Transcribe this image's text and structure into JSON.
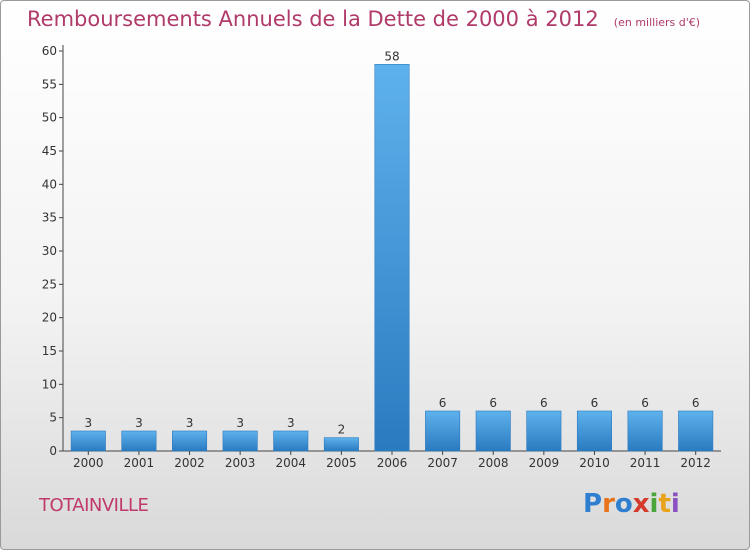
{
  "chart_data": {
    "type": "bar",
    "title": "Remboursements Annuels de la Dette de 2000 à 2012",
    "subtitle": "(en milliers d'€)",
    "categories": [
      "2000",
      "2001",
      "2002",
      "2003",
      "2004",
      "2005",
      "2006",
      "2007",
      "2008",
      "2009",
      "2010",
      "2011",
      "2012"
    ],
    "values": [
      3,
      3,
      3,
      3,
      3,
      2,
      58,
      6,
      6,
      6,
      6,
      6,
      6
    ],
    "ylim": [
      0,
      60
    ],
    "yticks": [
      0,
      5,
      10,
      15,
      20,
      25,
      30,
      35,
      40,
      45,
      50,
      55,
      60
    ],
    "xlabel": "",
    "ylabel": "",
    "grid": false,
    "bar_color": "#4a9fe0",
    "bar_color_dark": "#2a7ac0"
  },
  "commune": "TOTAINVILLE",
  "logo": {
    "text": "Proxiti",
    "letters": [
      "P",
      "r",
      "o",
      "x",
      "i",
      "t",
      "i"
    ],
    "colors": [
      "#2f7fd1",
      "#e8731b",
      "#2f7fd1",
      "#d63a2a",
      "#4aa63a",
      "#e8a31b",
      "#8a4fc0"
    ]
  },
  "colors": {
    "title": "#b03a6a",
    "axis": "#333333"
  }
}
